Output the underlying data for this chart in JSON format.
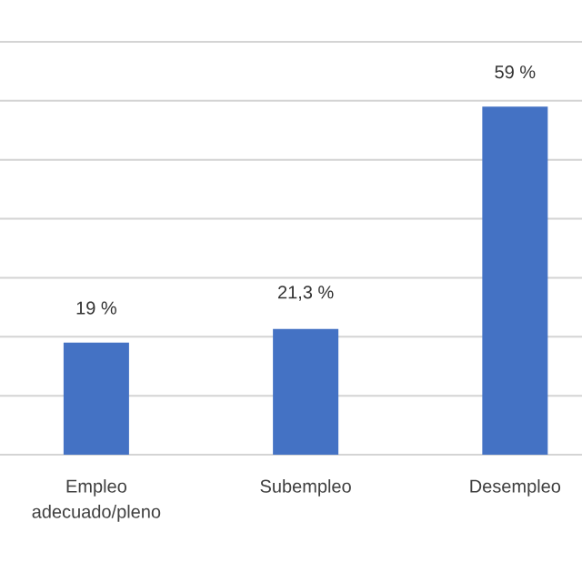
{
  "chart_data": {
    "type": "bar",
    "categories": [
      "Empleo adecuado/pleno",
      "Subempleo",
      "Desempleo"
    ],
    "values": [
      19,
      21.3,
      59
    ],
    "value_labels": [
      "19 %",
      "21,3 %",
      "59 %"
    ],
    "color": "#4472c4",
    "ylim": [
      0,
      70
    ],
    "yticks": [
      {
        "value": 0,
        "label": null
      },
      {
        "value": 10,
        "label": null
      },
      {
        "value": 20,
        "label": null
      },
      {
        "value": 30,
        "label": null
      },
      {
        "value": 40,
        "label": null
      },
      {
        "value": 50,
        "label": null
      },
      {
        "value": 60,
        "label": null
      },
      {
        "value": 70,
        "label": null
      }
    ],
    "grid": "y",
    "tick_labels": "x"
  }
}
